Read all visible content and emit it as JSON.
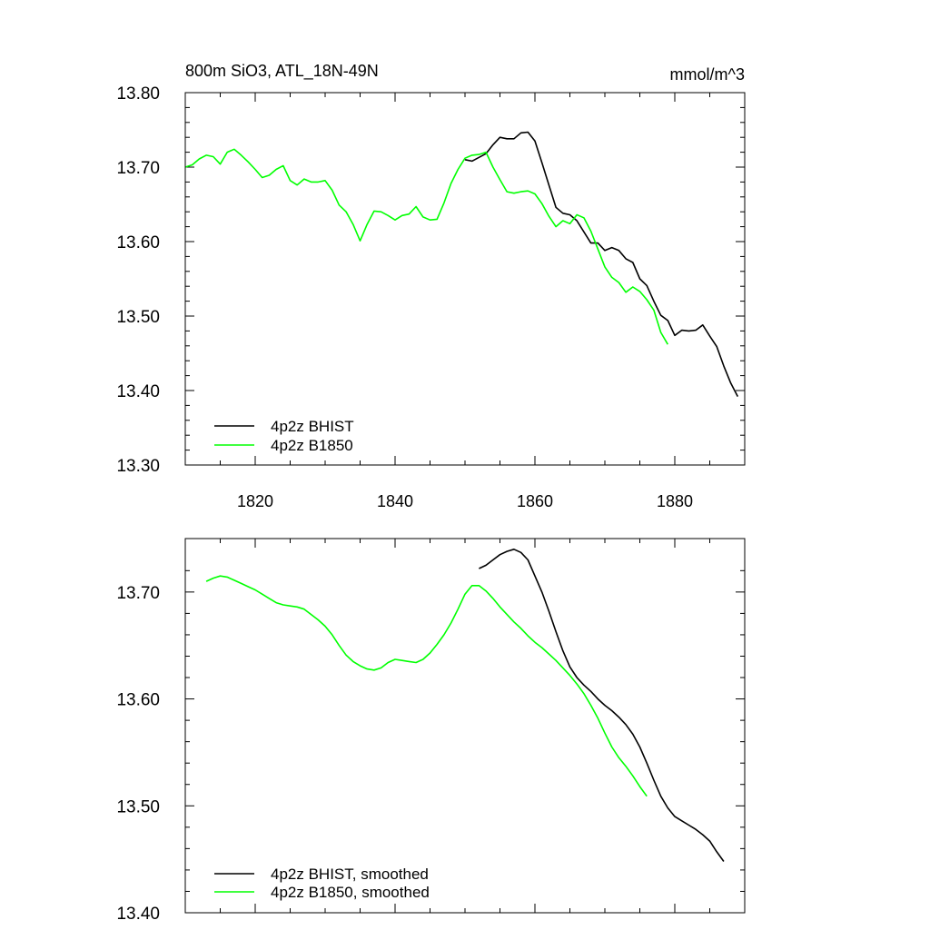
{
  "chart_data": [
    {
      "type": "line",
      "title": "800m SiO3, ATL_18N-49N",
      "units": "mmol/m^3",
      "xlabel": "",
      "ylabel": "",
      "xlim": [
        1810,
        1890
      ],
      "ylim": [
        13.3,
        13.8
      ],
      "xticks": [
        1820,
        1840,
        1860,
        1880
      ],
      "xtick_labels": [
        "1820",
        "1840",
        "1860",
        "1880"
      ],
      "yticks": [
        13.3,
        13.4,
        13.5,
        13.6,
        13.7,
        13.8
      ],
      "ytick_labels": [
        "13.30",
        "13.40",
        "13.50",
        "13.60",
        "13.70",
        "13.80"
      ],
      "grid": false,
      "legend_position": "bottom-left",
      "series": [
        {
          "name": "4p2z BHIST",
          "color": "#000000",
          "x": [
            1850,
            1851,
            1852,
            1853,
            1854,
            1855,
            1856,
            1857,
            1858,
            1859,
            1860,
            1861,
            1862,
            1863,
            1864,
            1865,
            1866,
            1867,
            1868,
            1869,
            1870,
            1871,
            1872,
            1873,
            1874,
            1875,
            1876,
            1877,
            1878,
            1879,
            1880,
            1881,
            1882,
            1883,
            1884,
            1885,
            1886,
            1887,
            1888,
            1889
          ],
          "values": [
            13.71,
            13.708,
            13.713,
            13.718,
            13.73,
            13.74,
            13.738,
            13.738,
            13.746,
            13.747,
            13.735,
            13.706,
            13.676,
            13.646,
            13.638,
            13.636,
            13.628,
            13.613,
            13.598,
            13.598,
            13.588,
            13.592,
            13.588,
            13.577,
            13.572,
            13.55,
            13.541,
            13.52,
            13.501,
            13.494,
            13.474,
            13.481,
            13.48,
            13.481,
            13.488,
            13.473,
            13.459,
            13.433,
            13.41,
            13.392
          ]
        },
        {
          "name": "4p2z B1850",
          "color": "#00ff00",
          "x": [
            1810,
            1811,
            1812,
            1813,
            1814,
            1815,
            1816,
            1817,
            1818,
            1819,
            1820,
            1821,
            1822,
            1823,
            1824,
            1825,
            1826,
            1827,
            1828,
            1829,
            1830,
            1831,
            1832,
            1833,
            1834,
            1835,
            1836,
            1837,
            1838,
            1839,
            1840,
            1841,
            1842,
            1843,
            1844,
            1845,
            1846,
            1847,
            1848,
            1849,
            1850,
            1851,
            1852,
            1853,
            1854,
            1855,
            1856,
            1857,
            1858,
            1859,
            1860,
            1861,
            1862,
            1863,
            1864,
            1865,
            1866,
            1867,
            1868,
            1869,
            1870,
            1871,
            1872,
            1873,
            1874,
            1875,
            1876,
            1877,
            1878,
            1879
          ],
          "values": [
            13.7,
            13.703,
            13.711,
            13.716,
            13.714,
            13.704,
            13.72,
            13.724,
            13.716,
            13.707,
            13.697,
            13.686,
            13.689,
            13.697,
            13.702,
            13.682,
            13.676,
            13.684,
            13.68,
            13.68,
            13.682,
            13.669,
            13.649,
            13.64,
            13.623,
            13.601,
            13.623,
            13.641,
            13.64,
            13.635,
            13.629,
            13.635,
            13.637,
            13.647,
            13.633,
            13.629,
            13.63,
            13.652,
            13.678,
            13.697,
            13.712,
            13.716,
            13.717,
            13.72,
            13.7,
            13.683,
            13.667,
            13.665,
            13.667,
            13.668,
            13.664,
            13.651,
            13.634,
            13.62,
            13.628,
            13.624,
            13.636,
            13.632,
            13.614,
            13.59,
            13.566,
            13.552,
            13.545,
            13.532,
            13.539,
            13.533,
            13.522,
            13.508,
            13.478,
            13.462
          ]
        }
      ]
    },
    {
      "type": "line",
      "title": "",
      "xlabel": "",
      "ylabel": "",
      "xlim": [
        1810,
        1890
      ],
      "ylim": [
        13.4,
        13.75
      ],
      "xticks": [
        1820,
        1840,
        1860,
        1880
      ],
      "xtick_labels": [],
      "yticks": [
        13.4,
        13.5,
        13.6,
        13.7
      ],
      "ytick_labels": [
        "13.40",
        "13.50",
        "13.60",
        "13.70"
      ],
      "grid": false,
      "legend_position": "bottom-left",
      "series": [
        {
          "name": "4p2z BHIST, smoothed",
          "color": "#000000",
          "x": [
            1852,
            1853,
            1854,
            1855,
            1856,
            1857,
            1858,
            1859,
            1860,
            1861,
            1862,
            1863,
            1864,
            1865,
            1866,
            1867,
            1868,
            1869,
            1870,
            1871,
            1872,
            1873,
            1874,
            1875,
            1876,
            1877,
            1878,
            1879,
            1880,
            1881,
            1882,
            1883,
            1884,
            1885,
            1886,
            1887
          ],
          "values": [
            13.722,
            13.725,
            13.73,
            13.735,
            13.738,
            13.74,
            13.737,
            13.73,
            13.715,
            13.7,
            13.682,
            13.663,
            13.645,
            13.63,
            13.62,
            13.613,
            13.607,
            13.6,
            13.594,
            13.589,
            13.583,
            13.576,
            13.567,
            13.555,
            13.54,
            13.524,
            13.509,
            13.498,
            13.49,
            13.486,
            13.482,
            13.478,
            13.473,
            13.467,
            13.457,
            13.448
          ]
        },
        {
          "name": "4p2z B1850, smoothed",
          "color": "#00ff00",
          "x": [
            1813,
            1814,
            1815,
            1816,
            1817,
            1818,
            1819,
            1820,
            1821,
            1822,
            1823,
            1824,
            1825,
            1826,
            1827,
            1828,
            1829,
            1830,
            1831,
            1832,
            1833,
            1834,
            1835,
            1836,
            1837,
            1838,
            1839,
            1840,
            1841,
            1842,
            1843,
            1844,
            1845,
            1846,
            1847,
            1848,
            1849,
            1850,
            1851,
            1852,
            1853,
            1854,
            1855,
            1856,
            1857,
            1858,
            1859,
            1860,
            1861,
            1862,
            1863,
            1864,
            1865,
            1866,
            1867,
            1868,
            1869,
            1870,
            1871,
            1872,
            1873,
            1874,
            1875,
            1876
          ],
          "values": [
            13.71,
            13.713,
            13.715,
            13.714,
            13.711,
            13.708,
            13.705,
            13.702,
            13.698,
            13.694,
            13.69,
            13.688,
            13.687,
            13.686,
            13.684,
            13.679,
            13.674,
            13.668,
            13.66,
            13.65,
            13.641,
            13.635,
            13.631,
            13.628,
            13.627,
            13.629,
            13.634,
            13.637,
            13.636,
            13.635,
            13.634,
            13.637,
            13.643,
            13.651,
            13.66,
            13.671,
            13.684,
            13.698,
            13.706,
            13.706,
            13.701,
            13.694,
            13.686,
            13.679,
            13.672,
            13.666,
            13.659,
            13.653,
            13.648,
            13.642,
            13.636,
            13.629,
            13.622,
            13.614,
            13.605,
            13.594,
            13.582,
            13.568,
            13.555,
            13.545,
            13.537,
            13.528,
            13.518,
            13.509
          ]
        }
      ]
    }
  ]
}
